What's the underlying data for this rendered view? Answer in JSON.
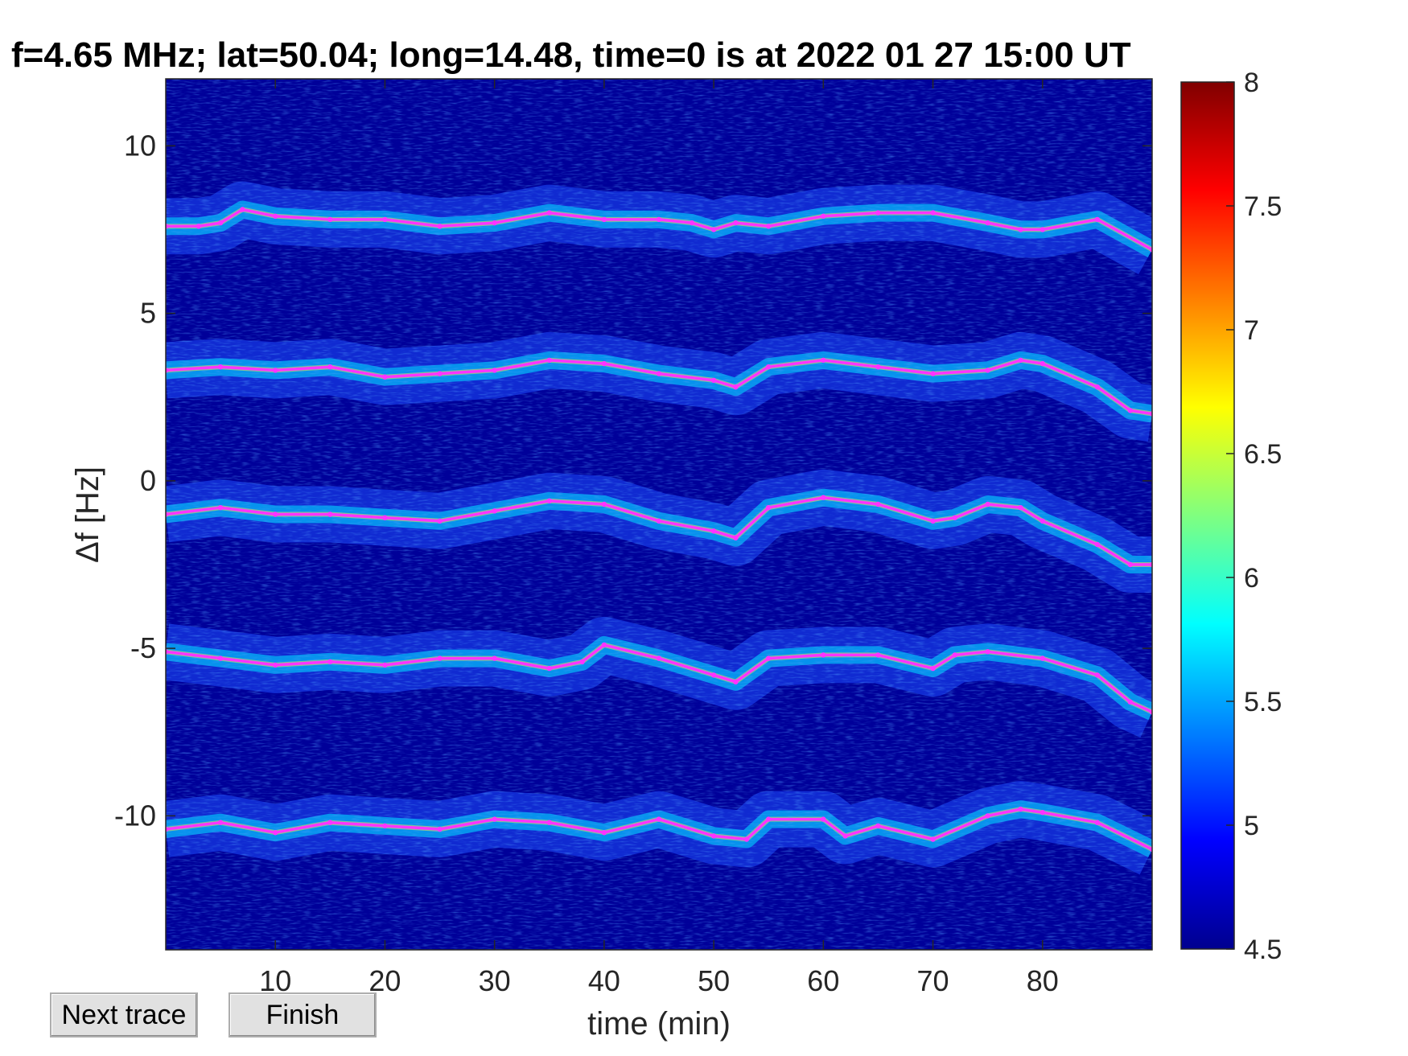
{
  "title": "f=4.65 MHz;  lat=50.04; long=14.48, time=0 is at 2022 01 27 15:00 UT",
  "buttons": {
    "next": "Next trace",
    "finish": "Finish"
  },
  "chart_data": {
    "type": "heatmap",
    "title": "f=4.65 MHz;  lat=50.04; long=14.48, time=0 is at 2022 01 27 15:00 UT",
    "xlabel": "time (min)",
    "ylabel": "Δf [Hz]",
    "xlim": [
      0,
      90
    ],
    "ylim": [
      -14,
      12
    ],
    "xticks": [
      10,
      20,
      30,
      40,
      50,
      60,
      70,
      80
    ],
    "xtick_labels": [
      "10",
      "20",
      "30",
      "40",
      "50",
      "60",
      "70",
      "80"
    ],
    "yticks": [
      10,
      5,
      0,
      -5,
      -10
    ],
    "ytick_labels": [
      "10",
      "5",
      "0",
      "-5",
      "-10"
    ],
    "colorbar": {
      "colormap": "jet",
      "range": [
        4.5,
        8
      ],
      "ticks": [
        8,
        7.5,
        7,
        6.5,
        6,
        5.5,
        5,
        4.5
      ],
      "tick_labels": [
        "8",
        "7.5",
        "7",
        "6.5",
        "6",
        "5.5",
        "5",
        "4.5"
      ]
    },
    "background_color": "#000099",
    "trace_color": "#ff33ff",
    "traces": [
      {
        "x": [
          0,
          3,
          5,
          7,
          10,
          15,
          20,
          25,
          30,
          35,
          40,
          45,
          48,
          50,
          52,
          55,
          60,
          65,
          70,
          75,
          78,
          80,
          85,
          90
        ],
        "y": [
          7.6,
          7.6,
          7.7,
          8.1,
          7.9,
          7.8,
          7.8,
          7.6,
          7.7,
          8.0,
          7.8,
          7.8,
          7.7,
          7.5,
          7.7,
          7.6,
          7.9,
          8.0,
          8.0,
          7.7,
          7.5,
          7.5,
          7.8,
          6.9
        ]
      },
      {
        "x": [
          0,
          5,
          10,
          15,
          20,
          25,
          30,
          35,
          40,
          45,
          50,
          52,
          55,
          60,
          65,
          70,
          75,
          78,
          80,
          85,
          88,
          90
        ],
        "y": [
          3.3,
          3.4,
          3.3,
          3.4,
          3.1,
          3.2,
          3.3,
          3.6,
          3.5,
          3.2,
          3.0,
          2.8,
          3.4,
          3.6,
          3.4,
          3.2,
          3.3,
          3.6,
          3.5,
          2.8,
          2.1,
          2.0
        ]
      },
      {
        "x": [
          0,
          5,
          10,
          15,
          20,
          25,
          30,
          35,
          40,
          45,
          50,
          52,
          55,
          60,
          65,
          70,
          72,
          75,
          78,
          80,
          85,
          88,
          90
        ],
        "y": [
          -1.0,
          -0.8,
          -1.0,
          -1.0,
          -1.1,
          -1.2,
          -0.9,
          -0.6,
          -0.7,
          -1.2,
          -1.5,
          -1.7,
          -0.8,
          -0.5,
          -0.7,
          -1.2,
          -1.1,
          -0.7,
          -0.8,
          -1.2,
          -1.9,
          -2.5,
          -2.5
        ]
      },
      {
        "x": [
          0,
          5,
          10,
          15,
          20,
          25,
          30,
          35,
          38,
          40,
          45,
          50,
          52,
          55,
          60,
          65,
          70,
          72,
          75,
          80,
          85,
          88,
          90
        ],
        "y": [
          -5.1,
          -5.3,
          -5.5,
          -5.4,
          -5.5,
          -5.3,
          -5.3,
          -5.6,
          -5.4,
          -4.9,
          -5.3,
          -5.8,
          -6.0,
          -5.3,
          -5.2,
          -5.2,
          -5.6,
          -5.2,
          -5.1,
          -5.3,
          -5.8,
          -6.6,
          -6.9
        ]
      },
      {
        "x": [
          0,
          5,
          10,
          15,
          20,
          25,
          30,
          35,
          40,
          45,
          50,
          53,
          55,
          60,
          62,
          65,
          70,
          75,
          78,
          80,
          85,
          90
        ],
        "y": [
          -10.4,
          -10.2,
          -10.5,
          -10.2,
          -10.3,
          -10.4,
          -10.1,
          -10.2,
          -10.5,
          -10.1,
          -10.6,
          -10.7,
          -10.1,
          -10.1,
          -10.6,
          -10.3,
          -10.7,
          -10.0,
          -9.8,
          -9.9,
          -10.2,
          -11.0
        ]
      }
    ]
  }
}
